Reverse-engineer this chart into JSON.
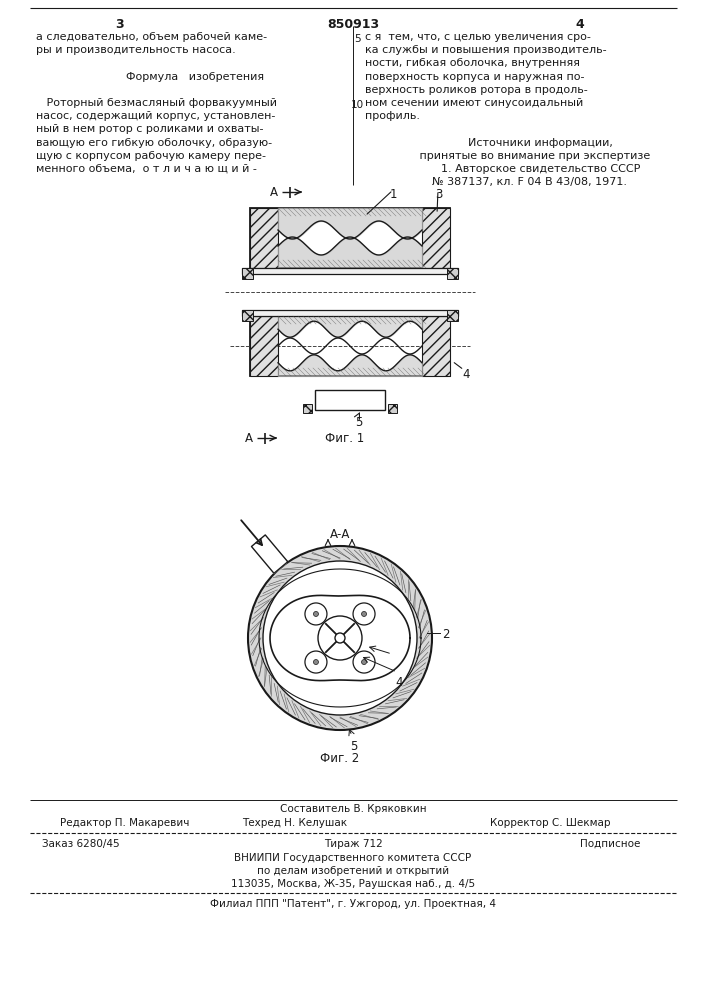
{
  "bg_color": "#ffffff",
  "page_color": "#ffffff",
  "text_color": "#1a1a1a",
  "line_color": "#1a1a1a",
  "header_number": "850913",
  "page_left": "3",
  "page_right": "4",
  "col_left_text": [
    "а следовательно, объем рабочей каме-",
    "ры и производительность насоса.",
    "",
    "      Формула   изобретения",
    "",
    "   Роторный безмасляный форвакуумный",
    "насос, содержащий корпус, установлен-",
    "ный в нем ротор с роликами и охваты-",
    "вающую его гибкую оболочку, образую-",
    "щую с корпусом рабочую камеру пере-",
    "менного объема,  о т л и ч а ю щ и й -"
  ],
  "col_right_text": [
    "с я  тем, что, с целью увеличения сро-",
    "ка службы и повышения производитель-",
    "ности, гибкая оболочка, внутренняя",
    "поверхность корпуса и наружная по-",
    "верхность роликов ротора в продоль-",
    "ном сечении имеют синусоидальный",
    "профиль.",
    "",
    "      Источники информации,",
    "   принятые во внимание при экспертизе",
    "      1. Авторское свидетельство СССР",
    "№ 387137, кл. F 04 В 43/08, 1971."
  ],
  "footer_editor": "Редактор П. Макаревич",
  "footer_tech": "Техред Н. Келушак",
  "footer_corrector": "Корректор С. Шекмар",
  "footer_composer": "Составитель В. Кряковкин",
  "footer_order": "Заказ 6280/45",
  "footer_tirazh": "Тираж 712",
  "footer_podpisnoe": "Подписное",
  "footer_vniipи": "ВНИИПИ Государственного комитета СССР",
  "footer_po_delam": "по делам изобретений и открытий",
  "footer_address": "113035, Москва, Ж-35, Раушская наб., д. 4/5",
  "footer_filial": "Филиал ППП \"Патент\", г. Ужгород, ул. Проектная, 4",
  "fig1_label": "Фиг. 1",
  "fig2_label": "Фиг. 2",
  "aa_label": "А-А"
}
